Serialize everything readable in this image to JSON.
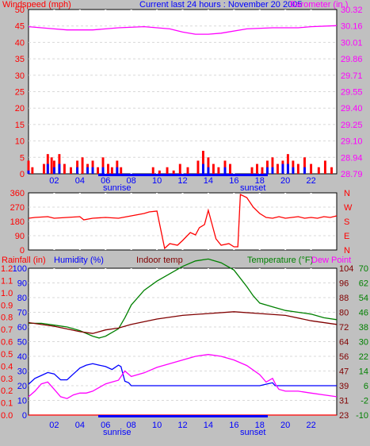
{
  "colors": {
    "background": "#c0c0c0",
    "plot": "#ffffff",
    "grid": "#ffffff",
    "wind_avg": "#0000ff",
    "wind_gust": "#ff0000",
    "barometer": "#ff00ff",
    "direction": "#ff0000",
    "rain": "#ff0000",
    "humidity": "#0000ff",
    "indoor_temp": "#800000",
    "temperature": "#008000",
    "dew_point": "#ff00ff",
    "daylight": "#0000ff"
  },
  "chart_data": [
    {
      "type": "bar",
      "title": "Current last 24 hours : November 20 2005",
      "left_label": "Windspeed (mph)",
      "right_label": "Barometer (in.)",
      "x_ticks": [
        "02",
        "04",
        "06",
        "08",
        "10",
        "12",
        "14",
        "16",
        "18",
        "20",
        "22"
      ],
      "x_range": [
        0,
        24
      ],
      "sun_labels": {
        "sunrise": "sunrise",
        "sunset": "sunset"
      },
      "left_ticks": [
        "50",
        "45",
        "40",
        "35",
        "30",
        "25",
        "20",
        "15",
        "10",
        "5",
        "0"
      ],
      "ylim": [
        0,
        50
      ],
      "right_ticks": [
        "30.32",
        "30.16",
        "30.01",
        "29.86",
        "29.71",
        "29.55",
        "29.40",
        "29.25",
        "29.10",
        "28.94",
        "28.79"
      ],
      "right_ylim": [
        28.79,
        30.32
      ],
      "series": [
        {
          "name": "wind gust",
          "type": "bar",
          "points": [
            [
              0,
              4
            ],
            [
              0.3,
              2
            ],
            [
              1.2,
              3
            ],
            [
              1.5,
              6
            ],
            [
              1.8,
              5
            ],
            [
              2.0,
              4
            ],
            [
              2.4,
              6
            ],
            [
              2.8,
              3
            ],
            [
              3.3,
              2
            ],
            [
              3.8,
              4
            ],
            [
              4.2,
              5
            ],
            [
              4.6,
              3
            ],
            [
              5.0,
              4
            ],
            [
              5.4,
              2
            ],
            [
              5.8,
              5
            ],
            [
              6.2,
              3
            ],
            [
              6.5,
              2
            ],
            [
              6.9,
              4
            ],
            [
              7.2,
              2
            ],
            [
              9.7,
              2
            ],
            [
              10.2,
              1
            ],
            [
              10.8,
              2
            ],
            [
              11.3,
              1
            ],
            [
              11.8,
              3
            ],
            [
              12.4,
              2
            ],
            [
              13.2,
              4
            ],
            [
              13.6,
              7
            ],
            [
              14.0,
              5
            ],
            [
              14.4,
              3
            ],
            [
              14.8,
              2
            ],
            [
              15.3,
              4
            ],
            [
              15.7,
              3
            ],
            [
              17.4,
              2
            ],
            [
              17.8,
              3
            ],
            [
              18.2,
              2
            ],
            [
              18.6,
              4
            ],
            [
              19.0,
              5
            ],
            [
              19.4,
              3
            ],
            [
              19.8,
              4
            ],
            [
              20.2,
              6
            ],
            [
              20.6,
              4
            ],
            [
              21.0,
              3
            ],
            [
              21.5,
              5
            ],
            [
              22.0,
              3
            ],
            [
              22.6,
              2
            ],
            [
              23.1,
              4
            ],
            [
              23.6,
              2
            ]
          ]
        },
        {
          "name": "wind average",
          "type": "bar",
          "points": [
            [
              0,
              1
            ],
            [
              1.5,
              3
            ],
            [
              2.0,
              2
            ],
            [
              2.4,
              3
            ],
            [
              3.8,
              2
            ],
            [
              4.6,
              2
            ],
            [
              5.0,
              2
            ],
            [
              5.8,
              2
            ],
            [
              6.9,
              2
            ],
            [
              13.6,
              3
            ],
            [
              14.0,
              2
            ],
            [
              15.3,
              2
            ],
            [
              18.6,
              2
            ],
            [
              19.0,
              2
            ],
            [
              19.8,
              3
            ],
            [
              20.2,
              3
            ],
            [
              20.6,
              2
            ],
            [
              21.5,
              2
            ]
          ]
        },
        {
          "name": "barometer",
          "type": "line",
          "x": [
            0,
            2,
            3,
            5,
            7,
            9,
            11,
            12,
            13,
            14,
            15,
            17,
            19,
            21,
            22,
            24
          ],
          "y": [
            30.16,
            30.14,
            30.13,
            30.13,
            30.15,
            30.16,
            30.14,
            30.11,
            30.09,
            30.09,
            30.1,
            30.14,
            30.15,
            30.15,
            30.16,
            30.17
          ]
        }
      ]
    },
    {
      "type": "line",
      "title": "",
      "left_ticks": [
        "360",
        "270",
        "180",
        "90",
        "0"
      ],
      "ylim": [
        0,
        360
      ],
      "right_ticks": [
        "N",
        "W",
        "S",
        "E",
        "N"
      ],
      "series": [
        {
          "name": "wind direction",
          "x": [
            0,
            0.5,
            1.5,
            2,
            3,
            4,
            4.3,
            5,
            6,
            7,
            8,
            9,
            9.4,
            10,
            10.6,
            11,
            11.6,
            12,
            12.6,
            13,
            13.3,
            13.7,
            14,
            14.6,
            15,
            15.6,
            16,
            16.3,
            16.5,
            17,
            17.5,
            18,
            18.5,
            19,
            19.5,
            20,
            20.5,
            21,
            21.5,
            22,
            22.5,
            23,
            23.5,
            24
          ],
          "y": [
            200,
            205,
            210,
            200,
            205,
            210,
            190,
            200,
            205,
            200,
            215,
            230,
            240,
            245,
            10,
            40,
            30,
            60,
            110,
            95,
            140,
            160,
            250,
            70,
            30,
            40,
            20,
            20,
            350,
            330,
            270,
            230,
            205,
            200,
            210,
            200,
            205,
            210,
            200,
            205,
            200,
            210,
            205,
            215
          ]
        }
      ]
    },
    {
      "type": "line",
      "left_label": "Rainfall (in)",
      "humidity_label": "Humidity (%)",
      "indoor_label": "Indoor temp",
      "temp_label": "Temperature (°F)",
      "dew_label": "Dew Point",
      "x_ticks": [
        "02",
        "04",
        "06",
        "08",
        "10",
        "12",
        "14",
        "16",
        "18",
        "20",
        "22"
      ],
      "sun_labels": {
        "sunrise": "sunrise",
        "sunset": "sunset"
      },
      "rain_ticks": [
        "1.2",
        "1.1",
        "1.0",
        "0.9",
        "0.8",
        "0.7",
        "0.6",
        "0.5",
        "0.4",
        "0.3",
        "0.2",
        "0.1",
        "0.0"
      ],
      "humidity_ticks": [
        "100",
        "90",
        "80",
        "70",
        "60",
        "50",
        "40",
        "30",
        "20",
        "10",
        "0"
      ],
      "indoor_ticks": [
        "104",
        "96",
        "88",
        "80",
        "72",
        "64",
        "56",
        "47",
        "39",
        "31",
        "23"
      ],
      "temp_ticks": [
        "70",
        "62",
        "54",
        "46",
        "38",
        "30",
        "22",
        "14",
        "6",
        "-2",
        "-10"
      ],
      "series": [
        {
          "name": "Temperature",
          "axis": "°F",
          "ylim": [
            -10,
            70
          ],
          "x": [
            0,
            1,
            2,
            3,
            4,
            5,
            5.5,
            6,
            6.5,
            7,
            7.5,
            8,
            9,
            10,
            11,
            12,
            13,
            14,
            15,
            16,
            17,
            17.5,
            18,
            19,
            20,
            21,
            22,
            23,
            24
          ],
          "y": [
            40,
            40,
            39,
            38,
            36,
            33,
            32,
            33,
            35,
            37,
            43,
            50,
            58,
            63,
            67,
            71,
            74,
            75,
            73,
            69,
            60,
            55,
            51,
            49,
            47,
            46,
            45,
            43,
            42
          ]
        },
        {
          "name": "Indoor temp",
          "axis": "°F",
          "ylim": [
            23,
            104
          ],
          "x": [
            0,
            2,
            4,
            5,
            6,
            7,
            8,
            10,
            12,
            14,
            16,
            18,
            20,
            22,
            24
          ],
          "y": [
            74,
            72,
            69,
            68,
            70,
            71,
            73,
            76,
            78,
            79,
            80,
            79,
            78,
            75,
            73
          ]
        },
        {
          "name": "Humidity",
          "axis": "%",
          "ylim": [
            0,
            100
          ],
          "x": [
            0,
            0.5,
            1,
            1.5,
            2,
            2.5,
            3,
            3.5,
            4,
            4.5,
            5,
            5.5,
            6,
            6.5,
            7,
            7.2,
            7.5,
            7.8,
            8,
            9,
            10,
            12,
            14,
            16,
            17,
            18,
            18.5,
            19,
            19.2,
            19.5,
            20,
            22,
            24
          ],
          "y": [
            21,
            25,
            27,
            29,
            28,
            24,
            24,
            28,
            32,
            34,
            35,
            34,
            33,
            31,
            34,
            33,
            23,
            22,
            20,
            20,
            20,
            20,
            20,
            20,
            20,
            20,
            21,
            22,
            20,
            20,
            20,
            20,
            20
          ]
        },
        {
          "name": "Dew Point",
          "axis": "°F",
          "ylim": [
            -10,
            70
          ],
          "x": [
            0,
            0.5,
            1,
            1.5,
            2,
            2.5,
            3,
            3.5,
            4,
            4.5,
            5,
            5.5,
            6,
            6.5,
            7,
            7.5,
            8,
            9,
            10,
            11,
            12,
            13,
            14,
            15,
            16,
            17,
            18,
            18.5,
            19,
            19.3,
            19.5,
            20,
            21,
            22,
            23,
            24
          ],
          "y": [
            0,
            3,
            7,
            8,
            4,
            0,
            -1,
            1,
            2,
            2,
            3,
            5,
            7,
            8,
            9,
            14,
            11,
            13,
            16,
            18,
            20,
            22,
            23,
            22,
            20,
            17,
            12,
            8,
            10,
            6,
            4,
            3,
            3,
            2,
            1,
            0
          ]
        },
        {
          "name": "Rainfall",
          "axis": "in",
          "ylim": [
            0,
            1.2
          ],
          "x": [
            0,
            24
          ],
          "y": [
            0,
            0
          ]
        }
      ]
    }
  ]
}
